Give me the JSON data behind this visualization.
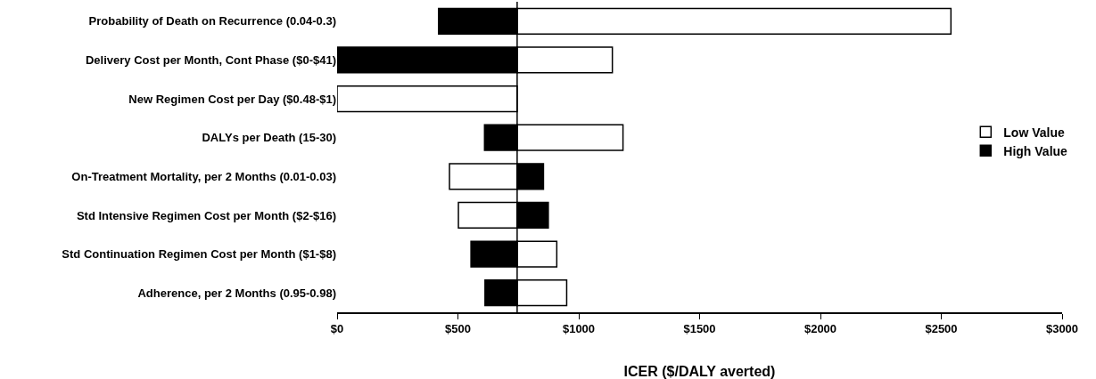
{
  "chart_data": {
    "type": "bar",
    "orientation": "horizontal",
    "xlabel": "ICER ($/DALY averted)",
    "categories": [
      "Probability of Death on Recurrence (0.04-0.3)",
      "Delivery Cost per Month, Cont Phase ($0-$41)",
      "New Regimen Cost per Day ($0.48-$1)",
      "DALYs per Death (15-30)",
      "On-Treatment Mortality, per 2 Months (0.01-0.03)",
      "Std Intensive Regimen Cost per Month ($2-$16)",
      "Std Continuation Regimen Cost per Month ($1-$8)",
      "Adherence, per 2 Months (0.95-0.98)"
    ],
    "series": [
      {
        "name": "Low Value",
        "color": "#ffffff",
        "base": [
          745,
          745,
          0,
          745,
          465,
          502,
          745,
          745
        ],
        "values": [
          1795,
          394,
          745,
          438,
          280,
          243,
          164,
          205
        ]
      },
      {
        "name": "High Value",
        "color": "#000000",
        "base": [
          420,
          0,
          null,
          610,
          745,
          745,
          554,
          612
        ],
        "values": [
          325,
          745,
          null,
          135,
          109,
          129,
          191,
          133
        ]
      }
    ],
    "xlim": [
      0,
      3000
    ],
    "xticks": [
      {
        "value": 0,
        "label": "$0"
      },
      {
        "value": 500,
        "label": "$500"
      },
      {
        "value": 1000,
        "label": "$1000"
      },
      {
        "value": 1500,
        "label": "$1500"
      },
      {
        "value": 2000,
        "label": "$2000"
      },
      {
        "value": 2500,
        "label": "$2500"
      },
      {
        "value": 3000,
        "label": "$3000"
      }
    ],
    "ref_lines": [
      {
        "axis": "x",
        "value": 745,
        "label": null,
        "color": "#000000"
      }
    ],
    "grid": false,
    "legend": "right"
  }
}
